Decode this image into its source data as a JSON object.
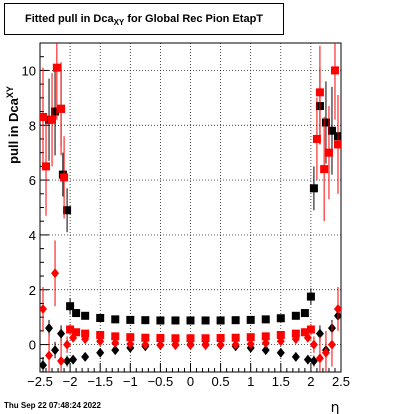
{
  "title": {
    "prefix": "Fitted pull in Dca",
    "subscript": "XY",
    "suffix": " for Global Rec Pion EtapT"
  },
  "timestamp": "Thu Sep 22 07:48:24 2022",
  "colors": {
    "series_a": "#000000",
    "series_b": "#ff0000",
    "grid": "#000000"
  },
  "chart_data": {
    "type": "scatter",
    "title": "Fitted pull in Dca_XY for Global Rec Pion EtapT",
    "xlabel": "η",
    "ylabel": "pull in Dca_XY",
    "xlim": [
      -2.5,
      2.5
    ],
    "ylim": [
      -1.0,
      11.0
    ],
    "xticks": [
      -2.5,
      -2,
      -1.5,
      -1,
      -0.5,
      0,
      0.5,
      1,
      1.5,
      2,
      2.5
    ],
    "xticklabels": [
      "−2.5",
      "−2",
      "−1.5",
      "−1",
      "−0.5",
      "0",
      "0.5",
      "1",
      "1.5",
      "2",
      "2.5"
    ],
    "yticks": [
      0,
      2,
      4,
      6,
      8,
      10
    ],
    "yticklabels": [
      "0",
      "2",
      "4",
      "6",
      "8",
      "10"
    ],
    "grid": true,
    "series": [
      {
        "marker": "square",
        "color": "#000000",
        "x": [
          -2.45,
          -2.35,
          -2.25,
          -2.15,
          -2.12,
          -2.05,
          -2.0,
          -1.9,
          -1.75,
          -1.5,
          -1.25,
          -1.0,
          -0.75,
          -0.5,
          -0.25,
          0,
          0.25,
          0.5,
          0.75,
          1.0,
          1.25,
          1.5,
          1.75,
          1.9,
          2.0,
          2.05,
          2.15,
          2.25,
          2.35,
          2.45
        ],
        "y": [
          8.3,
          8.2,
          8.5,
          8.6,
          6.2,
          4.9,
          1.4,
          1.15,
          1.05,
          0.97,
          0.92,
          0.9,
          0.89,
          0.88,
          0.88,
          0.88,
          0.88,
          0.88,
          0.89,
          0.9,
          0.92,
          0.96,
          1.05,
          1.15,
          1.75,
          5.7,
          8.7,
          8.1,
          7.8,
          7.6
        ],
        "err": [
          1.5,
          1.5,
          1.6,
          1.4,
          0.8,
          0.8,
          0.3,
          0.1,
          0.08,
          0.05,
          0.05,
          0.05,
          0.05,
          0.05,
          0.05,
          0.05,
          0.05,
          0.05,
          0.05,
          0.05,
          0.05,
          0.05,
          0.08,
          0.1,
          0.3,
          0.8,
          1.4,
          1.5,
          1.6,
          1.5
        ]
      },
      {
        "marker": "diamond",
        "color": "#000000",
        "x": [
          -2.45,
          -2.35,
          -2.25,
          -2.15,
          -2.05,
          -1.95,
          -1.75,
          -1.5,
          -1.25,
          -1.0,
          -0.75,
          -0.5,
          -0.25,
          0,
          0.25,
          0.5,
          0.75,
          1.0,
          1.25,
          1.5,
          1.75,
          1.95,
          2.05,
          2.15,
          2.25,
          2.35,
          2.45
        ],
        "y": [
          -0.75,
          0.6,
          -0.2,
          0.4,
          -0.6,
          -0.55,
          -0.45,
          -0.3,
          -0.2,
          -0.12,
          -0.06,
          -0.02,
          0.0,
          0.0,
          0.0,
          -0.02,
          -0.06,
          -0.12,
          -0.2,
          -0.3,
          -0.45,
          -0.55,
          -0.6,
          0.4,
          -0.2,
          0.6,
          1.05
        ],
        "err": [
          0.3,
          0.3,
          0.3,
          0.3,
          0.2,
          0.05,
          0.04,
          0.03,
          0.03,
          0.03,
          0.03,
          0.03,
          0.03,
          0.03,
          0.03,
          0.03,
          0.03,
          0.03,
          0.03,
          0.03,
          0.04,
          0.05,
          0.2,
          0.3,
          0.3,
          0.3,
          0.3
        ]
      },
      {
        "marker": "square",
        "color": "#ff0000",
        "x": [
          -2.45,
          -2.4,
          -2.3,
          -2.22,
          -2.15,
          -2.1,
          -2.0,
          -1.9,
          -1.75,
          -1.5,
          -1.25,
          -1.0,
          -0.75,
          -0.5,
          -0.25,
          0,
          0.25,
          0.5,
          0.75,
          1.0,
          1.25,
          1.5,
          1.75,
          1.9,
          2.0,
          2.1,
          2.15,
          2.22,
          2.3,
          2.4,
          2.45
        ],
        "y": [
          8.3,
          6.5,
          8.2,
          10.1,
          8.6,
          6.1,
          0.55,
          0.45,
          0.4,
          0.35,
          0.3,
          0.27,
          0.25,
          0.24,
          0.23,
          0.23,
          0.23,
          0.24,
          0.25,
          0.27,
          0.3,
          0.35,
          0.4,
          0.45,
          0.55,
          7.5,
          9.2,
          6.4,
          7.0,
          10.0,
          7.3
        ],
        "err": [
          1.8,
          1.8,
          1.7,
          1.9,
          1.7,
          1.5,
          0.2,
          0.08,
          0.06,
          0.05,
          0.05,
          0.05,
          0.05,
          0.05,
          0.05,
          0.05,
          0.05,
          0.05,
          0.05,
          0.05,
          0.05,
          0.05,
          0.06,
          0.08,
          0.2,
          1.5,
          1.7,
          1.9,
          1.7,
          1.8,
          1.8
        ]
      },
      {
        "marker": "diamond",
        "color": "#ff0000",
        "x": [
          -2.45,
          -2.35,
          -2.25,
          -2.15,
          -2.05,
          -1.95,
          -1.75,
          -1.5,
          -1.25,
          -1.0,
          -0.75,
          -0.5,
          -0.25,
          0,
          0.25,
          0.5,
          0.75,
          1.0,
          1.25,
          1.5,
          1.75,
          1.95,
          2.05,
          2.15,
          2.25,
          2.35,
          2.45
        ],
        "y": [
          1.3,
          -0.4,
          2.6,
          -0.6,
          0.0,
          0.25,
          0.2,
          0.12,
          0.06,
          0.02,
          0.0,
          -0.01,
          -0.02,
          -0.02,
          -0.02,
          -0.01,
          0.0,
          0.02,
          0.06,
          0.12,
          0.2,
          0.25,
          0.0,
          -0.5,
          -0.3,
          0.0,
          1.3
        ],
        "err": [
          0.8,
          0.8,
          1.2,
          0.8,
          0.3,
          0.06,
          0.05,
          0.04,
          0.04,
          0.04,
          0.04,
          0.04,
          0.04,
          0.04,
          0.04,
          0.04,
          0.04,
          0.04,
          0.04,
          0.04,
          0.05,
          0.06,
          0.3,
          0.8,
          0.8,
          0.8,
          0.8
        ]
      }
    ]
  }
}
